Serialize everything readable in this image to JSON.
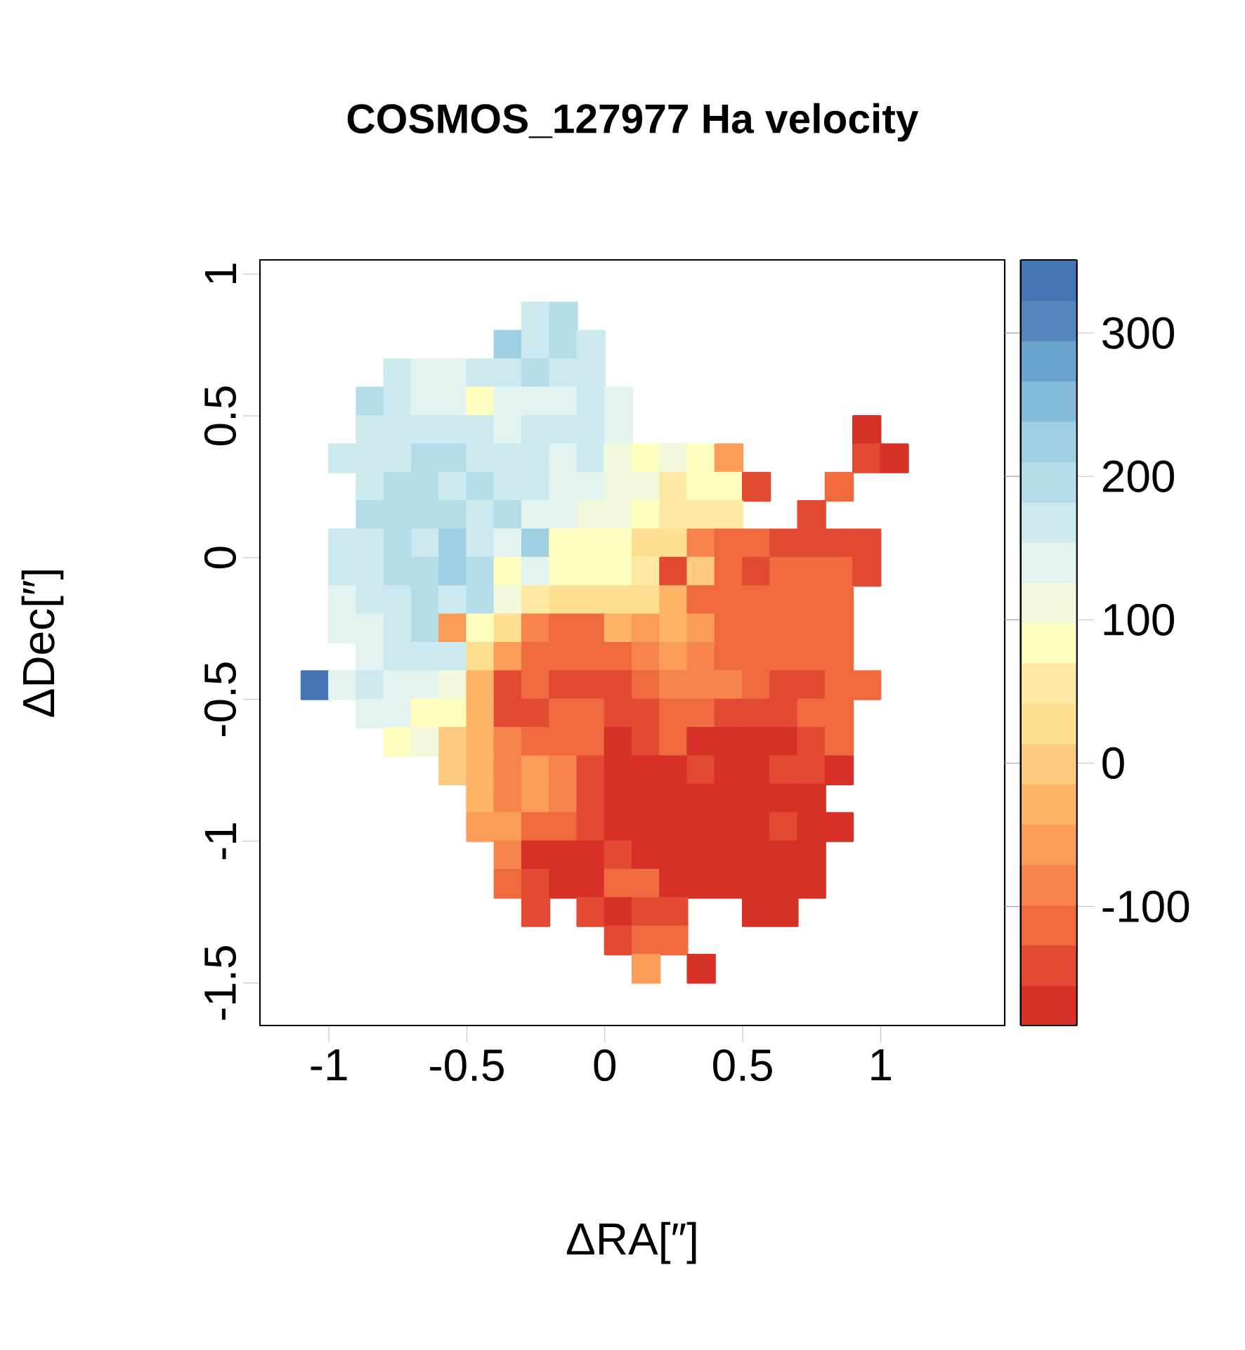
{
  "chart_data": {
    "type": "heatmap",
    "title": "COSMOS_127977 Ha velocity",
    "xlabel": "ΔRA[″]",
    "ylabel": "ΔDec[″]",
    "x": [
      -1.05,
      -0.95,
      -0.85,
      -0.75,
      -0.65,
      -0.55,
      -0.45,
      -0.35,
      -0.25,
      -0.15,
      -0.05,
      0.05,
      0.15,
      0.25,
      0.35,
      0.45,
      0.55,
      0.65,
      0.75,
      0.85,
      0.95,
      1.05
    ],
    "y": [
      0.85,
      0.75,
      0.65,
      0.55,
      0.45,
      0.35,
      0.25,
      0.15,
      0.05,
      -0.05,
      -0.15,
      -0.25,
      -0.35,
      -0.45,
      -0.55,
      -0.65,
      -0.75,
      -0.85,
      -0.95,
      -1.05,
      -1.15,
      -1.25,
      -1.35,
      -1.45
    ],
    "cells": [
      [
        null,
        null,
        null,
        null,
        null,
        null,
        null,
        null,
        170,
        195,
        null,
        null,
        null,
        null,
        null,
        null,
        null,
        null,
        null,
        null,
        null,
        null
      ],
      [
        null,
        null,
        null,
        null,
        null,
        null,
        null,
        225,
        170,
        195,
        170,
        null,
        null,
        null,
        null,
        null,
        null,
        null,
        null,
        null,
        null,
        null
      ],
      [
        null,
        null,
        null,
        170,
        140,
        140,
        170,
        170,
        195,
        170,
        170,
        null,
        null,
        null,
        null,
        null,
        null,
        null,
        null,
        null,
        null,
        null
      ],
      [
        null,
        null,
        195,
        170,
        140,
        140,
        85,
        140,
        140,
        140,
        170,
        140,
        null,
        null,
        null,
        null,
        null,
        null,
        null,
        null,
        null,
        null
      ],
      [
        null,
        null,
        170,
        170,
        170,
        170,
        170,
        140,
        170,
        170,
        170,
        140,
        null,
        null,
        null,
        null,
        null,
        null,
        null,
        null,
        -170,
        null
      ],
      [
        null,
        170,
        170,
        170,
        195,
        195,
        170,
        170,
        170,
        140,
        170,
        110,
        85,
        110,
        85,
        -55,
        null,
        null,
        null,
        null,
        -140,
        -170
      ],
      [
        null,
        null,
        170,
        195,
        195,
        170,
        195,
        170,
        170,
        140,
        140,
        110,
        110,
        55,
        85,
        85,
        -140,
        null,
        null,
        -115,
        null,
        null
      ],
      [
        null,
        null,
        195,
        195,
        195,
        195,
        170,
        195,
        140,
        140,
        110,
        110,
        85,
        55,
        55,
        55,
        null,
        null,
        -140,
        null,
        null,
        null
      ],
      [
        null,
        170,
        170,
        195,
        170,
        225,
        170,
        140,
        225,
        85,
        85,
        85,
        30,
        30,
        -85,
        -115,
        -115,
        -140,
        -140,
        -140,
        -140,
        null
      ],
      [
        null,
        170,
        170,
        195,
        195,
        225,
        195,
        85,
        140,
        85,
        85,
        85,
        55,
        -140,
        0,
        -115,
        -140,
        -115,
        -115,
        -115,
        -140,
        null
      ],
      [
        null,
        140,
        170,
        170,
        195,
        170,
        195,
        110,
        55,
        30,
        30,
        30,
        30,
        -30,
        -115,
        -115,
        -115,
        -115,
        -115,
        -115,
        null,
        null
      ],
      [
        null,
        140,
        140,
        170,
        195,
        -55,
        85,
        30,
        -85,
        -115,
        -115,
        -30,
        -55,
        -30,
        -55,
        -115,
        -115,
        -115,
        -115,
        -115,
        null,
        null
      ],
      [
        null,
        null,
        140,
        170,
        170,
        170,
        30,
        -55,
        -115,
        -115,
        -115,
        -115,
        -85,
        -55,
        -85,
        -115,
        -115,
        -115,
        -115,
        -115,
        null,
        null
      ],
      [
        335,
        140,
        170,
        140,
        140,
        110,
        -30,
        -140,
        -115,
        -140,
        -140,
        -140,
        -115,
        -85,
        -85,
        -85,
        -115,
        -140,
        -140,
        -115,
        -115,
        null
      ],
      [
        null,
        null,
        140,
        140,
        85,
        85,
        -30,
        -140,
        -140,
        -115,
        -115,
        -140,
        -140,
        -115,
        -115,
        -140,
        -140,
        -140,
        -115,
        -115,
        null,
        null
      ],
      [
        null,
        null,
        null,
        85,
        110,
        0,
        -30,
        -85,
        -115,
        -115,
        -115,
        -170,
        -140,
        -115,
        -170,
        -170,
        -170,
        -170,
        -140,
        -115,
        null,
        null
      ],
      [
        null,
        null,
        null,
        null,
        null,
        0,
        -30,
        -85,
        -55,
        -85,
        -140,
        -170,
        -170,
        -170,
        -140,
        -170,
        -170,
        -140,
        -140,
        -170,
        null,
        null
      ],
      [
        null,
        null,
        null,
        null,
        null,
        null,
        -30,
        -85,
        -55,
        -85,
        -140,
        -170,
        -170,
        -170,
        -170,
        -170,
        -170,
        -170,
        -170,
        null,
        null,
        null
      ],
      [
        null,
        null,
        null,
        null,
        null,
        null,
        -55,
        -55,
        -115,
        -115,
        -140,
        -170,
        -170,
        -170,
        -170,
        -170,
        -170,
        -140,
        -170,
        -170,
        null,
        null
      ],
      [
        null,
        null,
        null,
        null,
        null,
        null,
        null,
        -85,
        -170,
        -170,
        -170,
        -140,
        -170,
        -170,
        -170,
        -170,
        -170,
        -170,
        -170,
        null,
        null,
        null
      ],
      [
        null,
        null,
        null,
        null,
        null,
        null,
        null,
        -115,
        -140,
        -170,
        -170,
        -115,
        -115,
        -170,
        -170,
        -170,
        -170,
        -170,
        -170,
        null,
        null,
        null
      ],
      [
        null,
        null,
        null,
        null,
        null,
        null,
        null,
        null,
        -140,
        null,
        -140,
        -170,
        -140,
        -140,
        null,
        null,
        -170,
        -170,
        null,
        null,
        null,
        null
      ],
      [
        null,
        null,
        null,
        null,
        null,
        null,
        null,
        null,
        null,
        null,
        null,
        -140,
        -115,
        -115,
        null,
        null,
        null,
        null,
        null,
        null,
        null,
        null
      ],
      [
        null,
        null,
        null,
        null,
        null,
        null,
        null,
        null,
        null,
        null,
        null,
        null,
        -55,
        null,
        -170,
        null,
        null,
        null,
        null,
        null,
        null,
        null
      ]
    ],
    "xlim": [
      -1.25,
      1.45
    ],
    "ylim": [
      -1.65,
      1.05
    ],
    "xticks": [
      -1,
      -0.5,
      0,
      0.5,
      1
    ],
    "yticks": [
      -1.5,
      -1,
      -0.5,
      0,
      0.5,
      1
    ],
    "clim": [
      -183,
      351
    ],
    "cticks": [
      -100,
      0,
      100,
      200,
      300
    ]
  }
}
